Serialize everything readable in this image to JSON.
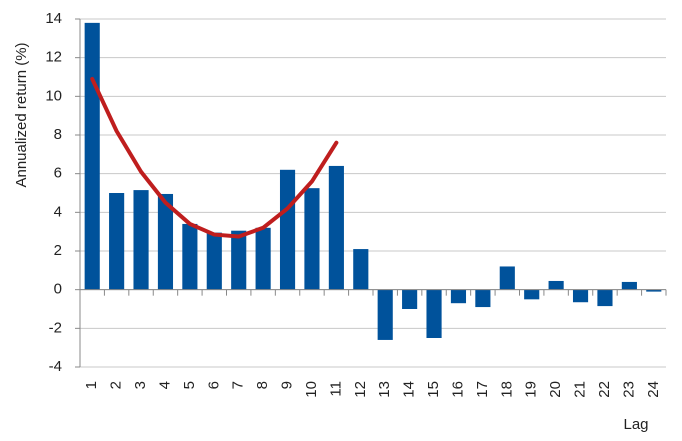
{
  "chart_data": {
    "type": "bar",
    "y_label": "Annualized return (%)",
    "x_label": "Lag",
    "categories": [
      "1",
      "2",
      "3",
      "4",
      "5",
      "6",
      "7",
      "8",
      "9",
      "10",
      "11",
      "12",
      "13",
      "14",
      "15",
      "16",
      "17",
      "18",
      "19",
      "20",
      "21",
      "22",
      "23",
      "24"
    ],
    "series": [
      {
        "type": "bar",
        "color": "#00529b",
        "values": [
          13.8,
          5.0,
          5.15,
          4.95,
          3.4,
          2.95,
          3.05,
          3.2,
          6.2,
          5.25,
          6.4,
          2.1,
          -2.6,
          -1.0,
          -2.5,
          -0.7,
          -0.9,
          1.2,
          -0.5,
          0.45,
          -0.65,
          -0.85,
          0.4,
          -0.1
        ]
      },
      {
        "type": "line",
        "color": "#bf1e1e",
        "values": [
          10.9,
          8.2,
          6.1,
          4.5,
          3.4,
          2.85,
          2.75,
          3.2,
          4.2,
          5.6,
          7.6,
          null,
          null,
          null,
          null,
          null,
          null,
          null,
          null,
          null,
          null,
          null,
          null,
          null
        ]
      }
    ],
    "ylim": [
      -4,
      14
    ],
    "yticks": [
      -4,
      -2,
      0,
      2,
      4,
      6,
      8,
      10,
      12,
      14
    ],
    "grid": true
  }
}
